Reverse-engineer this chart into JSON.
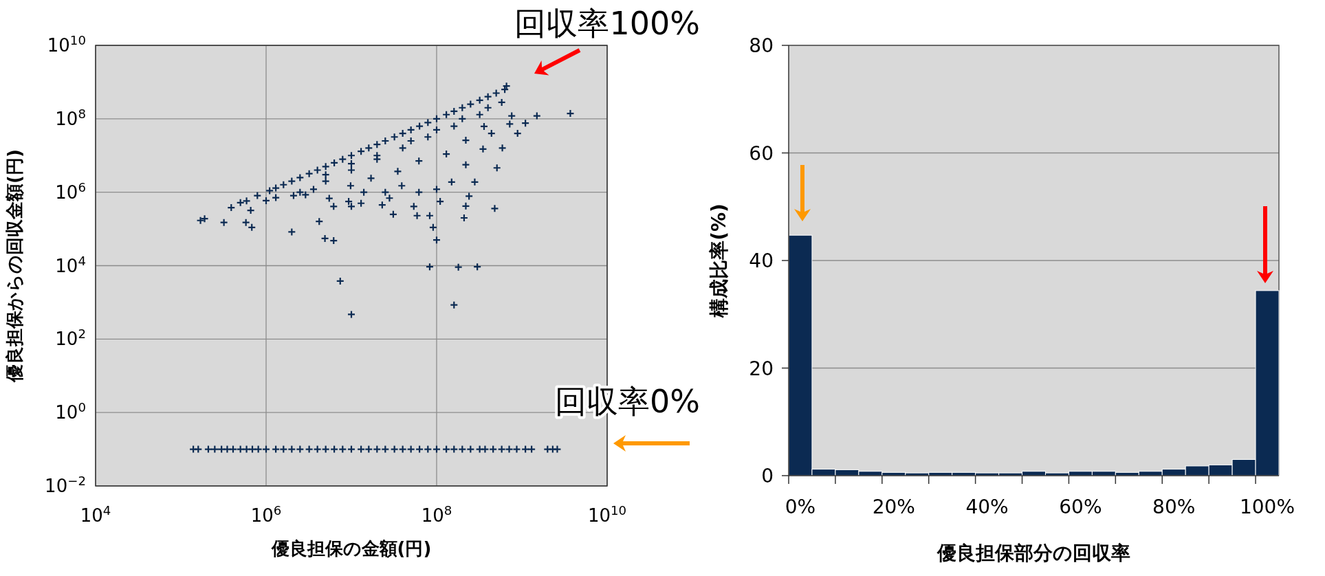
{
  "chart_data": [
    {
      "type": "scatter",
      "xlabel": "優良担保の金額(円)",
      "ylabel": "優良担保からの回収金額(円)",
      "log": "xy",
      "xlim": [
        10000.0,
        10000000000.0
      ],
      "ylim": [
        0.01,
        10000000000.0
      ],
      "xticks": [
        {
          "value": 10000.0,
          "label": "10$^{4}$"
        },
        {
          "value": 1000000.0,
          "label": "10$^{6}$"
        },
        {
          "value": 100000000.0,
          "label": "10$^{8}$"
        },
        {
          "value": 10000000000.0,
          "label": "10$^{10}$"
        }
      ],
      "yticks": [
        {
          "value": 0.01,
          "label": "10$^{−2}$"
        },
        {
          "value": 1,
          "label": "10$^{0}$"
        },
        {
          "value": 100.0,
          "label": "10$^{2}$"
        },
        {
          "value": 10000.0,
          "label": "10$^{4}$"
        },
        {
          "value": 1000000.0,
          "label": "10$^{6}$"
        },
        {
          "value": 100000000.0,
          "label": "10$^{8}$"
        },
        {
          "value": 10000000000.0,
          "label": "10$^{10}$"
        }
      ],
      "grid": true,
      "marker": "cross",
      "series": [
        {
          "color": "#0b2a52",
          "x": [
            170000.0,
            190000.0,
            320000.0,
            390000.0,
            500000.0,
            590000.0,
            580000.0,
            680000.0,
            660000.0,
            790000.0,
            1000000.0,
            1300000.0,
            2000000.0,
            2100000.0,
            2900000.0,
            3600000.0,
            4200000.0,
            4900000.0,
            6200000.0,
            5500000.0,
            6200000.0,
            7400000.0,
            10000000.0,
            9300000.0,
            10000000.0,
            13000000.0,
            23000000.0,
            28000000.0,
            31000000.0,
            54000000.0,
            59000000.0,
            83000000.0,
            91000000.0,
            100000000.0,
            83000000.0,
            180000000.0,
            300000000.0,
            160000000.0,
            110000000.0,
            220000000.0,
            210000000.0,
            240000000.0,
            480000000.0,
            280000000.0,
            510000000.0,
            590000000.0,
            890000000.0,
            1100000000.0,
            1500000000.0,
            3700000000.0,
            760000000.0,
            720000000.0,
            660000000.0,
            580000000.0,
            440000000.0,
            350000000.0,
            220000000.0,
            150000000.0,
            100000000.0,
            62000000.0,
            39000000.0,
            25000000.0,
            14000000.0,
            9800000.0,
            17000000.0,
            35000000.0,
            62000000.0,
            130000000.0,
            220000000.0,
            360000000.0,
            1600000.0,
            3200000.0,
            6300000.0,
            13000000.0,
            25000000.0,
            50000000.0,
            100000000.0,
            200000000.0,
            400000000.0,
            20000000.0,
            50000000.0,
            100000000.0,
            200000000.0,
            400000000.0,
            5000000.0,
            10000000.0,
            1100000.0,
            1300000.0,
            2000000.0,
            2500000.0,
            4000000.0,
            5000000.0,
            7900000.0,
            10000000.0,
            16000000.0,
            20000000.0,
            32000000.0,
            40000000.0,
            63000000.0,
            79000000.0,
            130000000.0,
            160000000.0,
            250000000.0,
            320000000.0,
            500000000.0,
            630000000.0,
            2500000.0,
            5000000.0,
            10000000.0,
            20000000.0,
            40000000.0,
            79000000.0,
            160000000.0,
            320000000.0
          ],
          "values": [
            170000.0,
            190000.0,
            150000.0,
            380000.0,
            520000.0,
            580000.0,
            150000.0,
            110000.0,
            320000.0,
            810000.0,
            590000.0,
            710000.0,
            83000.0,
            810000.0,
            850000.0,
            1200000.0,
            160000.0,
            55000.0,
            48000.0,
            680000.0,
            410000.0,
            3800.0,
            470.0,
            560000.0,
            410000.0,
            500000.0,
            450000.0,
            690000.0,
            250000.0,
            410000.0,
            230000.0,
            230000.0,
            110000.0,
            50000.0,
            9300.0,
            9100.0,
            9300.0,
            850.0,
            560000.0,
            420000.0,
            200000.0,
            780000.0,
            360000.0,
            1900000.0,
            4600000.0,
            16000000.0,
            40000000.0,
            76000000.0,
            120000000.0,
            140000000.0,
            120000000.0,
            72000000.0,
            780000000.0,
            280000000.0,
            40000000.0,
            15000000.0,
            5600000.0,
            1900000.0,
            1200000.0,
            1000000.0,
            1500000.0,
            1000000.0,
            1000000.0,
            1500000.0,
            2400000.0,
            3700000.0,
            7100000.0,
            11000000.0,
            26000000.0,
            62000000.0,
            1600000.0,
            3200000.0,
            6300000.0,
            13000000.0,
            25000000.0,
            50000000.0,
            100000000.0,
            200000000.0,
            400000000.0,
            10000000.0,
            25000000.0,
            50000000.0,
            100000000.0,
            200000000.0,
            3000000.0,
            6000000.0,
            1100000.0,
            1300000.0,
            2000000.0,
            2500000.0,
            4000000.0,
            5000000.0,
            7900000.0,
            10000000.0,
            16000000.0,
            20000000.0,
            32000000.0,
            40000000.0,
            63000000.0,
            79000000.0,
            130000000.0,
            160000000.0,
            250000000.0,
            320000000.0,
            500000000.0,
            630000000.0,
            1000000.0,
            2000000.0,
            4000000.0,
            7900000.0,
            16000000.0,
            32000000.0,
            63000000.0,
            130000000.0
          ]
        },
        {
          "color": "#0b2a52",
          "x": [
            140000.0,
            160000.0,
            210000.0,
            250000.0,
            300000.0,
            350000.0,
            410000.0,
            500000.0,
            590000.0,
            690000.0,
            810000.0,
            1000000.0,
            1300000.0,
            1600000.0,
            2000000.0,
            2500000.0,
            3200000.0,
            4000000.0,
            5000000.0,
            6300000.0,
            7900000.0,
            10000000.0,
            13000000.0,
            16000000.0,
            20000000.0,
            25000000.0,
            32000000.0,
            40000000.0,
            50000000.0,
            63000000.0,
            79000000.0,
            100000000.0,
            130000000.0,
            160000000.0,
            200000000.0,
            250000000.0,
            320000000.0,
            370000000.0,
            460000000.0,
            580000000.0,
            710000000.0,
            870000000.0,
            1100000000.0,
            1300000000.0,
            2000000000.0,
            2300000000.0,
            2600000000.0
          ],
          "values": [
            0.1,
            0.1,
            0.1,
            0.1,
            0.1,
            0.1,
            0.1,
            0.1,
            0.1,
            0.1,
            0.1,
            0.1,
            0.1,
            0.1,
            0.1,
            0.1,
            0.1,
            0.1,
            0.1,
            0.1,
            0.1,
            0.1,
            0.1,
            0.1,
            0.1,
            0.1,
            0.1,
            0.1,
            0.1,
            0.1,
            0.1,
            0.1,
            0.1,
            0.1,
            0.1,
            0.1,
            0.1,
            0.1,
            0.1,
            0.1,
            0.1,
            0.1,
            0.1,
            0.1,
            0.1,
            0.1,
            0.1
          ]
        }
      ],
      "annotations": [
        "回収率100%",
        "回収率0%"
      ]
    },
    {
      "type": "bar",
      "xlabel": "優良担保部分の回収率",
      "ylabel": "構成比率(%)",
      "categories": [
        "0%",
        null,
        null,
        null,
        "20%",
        null,
        null,
        null,
        "40%",
        null,
        null,
        null,
        "60%",
        null,
        null,
        null,
        "80%",
        null,
        null,
        null,
        "100%"
      ],
      "values": [
        44.7,
        1.2,
        1.1,
        0.8,
        0.6,
        0.5,
        0.6,
        0.6,
        0.5,
        0.5,
        0.8,
        0.5,
        0.8,
        0.8,
        0.6,
        0.8,
        1.2,
        1.8,
        2.0,
        3.0,
        34.4
      ],
      "color": "#0b2a52",
      "ylim": [
        0,
        80
      ],
      "yticks": [
        0,
        20,
        40,
        60,
        80
      ],
      "grid": "y"
    }
  ]
}
